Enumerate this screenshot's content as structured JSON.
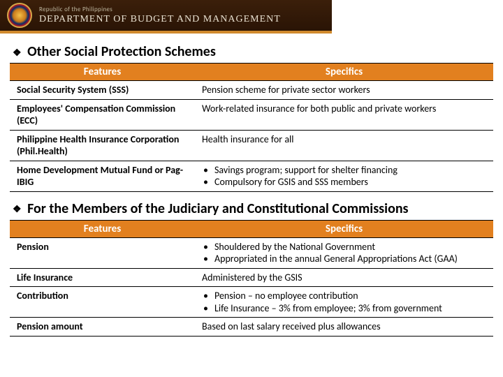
{
  "header": {
    "subtitle": "Republic of the Philippines",
    "title": "DEPARTMENT OF BUDGET AND MANAGEMENT"
  },
  "section1": {
    "heading": "Other Social Protection Schemes",
    "columns": [
      "Features",
      "Specifics"
    ],
    "rows": [
      {
        "feature": "Social Security System (SSS)",
        "spec_type": "text",
        "spec": "Pension scheme for private sector workers"
      },
      {
        "feature": "Employees' Compensation Commission (ECC)",
        "spec_type": "text",
        "spec": "Work-related insurance for both public and private workers"
      },
      {
        "feature": "Philippine Health Insurance Corporation (Phil.Health)",
        "spec_type": "text",
        "spec": "Health insurance for all"
      },
      {
        "feature": "Home Development Mutual Fund or Pag-IBIG",
        "spec_type": "bullets",
        "bullets": [
          "Savings program; support for shelter financing",
          "Compulsory for GSIS and SSS members"
        ]
      }
    ]
  },
  "section2": {
    "heading": "For the Members of the Judiciary and Constitutional Commissions",
    "columns": [
      "Features",
      "Specifics"
    ],
    "rows": [
      {
        "feature": "Pension",
        "spec_type": "bullets",
        "bullets": [
          "Shouldered by the National Government",
          "Appropriated in the annual General Appropriations Act (GAA)"
        ]
      },
      {
        "feature": "Life Insurance",
        "spec_type": "text",
        "spec": "Administered by the GSIS"
      },
      {
        "feature": "Contribution",
        "spec_type": "bullets",
        "bullets": [
          "Pension – no employee contribution",
          "Life Insurance – 3% from employee; 3% from government"
        ]
      },
      {
        "feature": "Pension amount",
        "spec_type": "text",
        "spec": "Based on last salary received plus allowances"
      }
    ]
  },
  "colors": {
    "header_accent": "#e2801f",
    "header_bar": "#3b1f0a",
    "divider": "#000000",
    "text": "#000000",
    "background": "#ffffff"
  }
}
